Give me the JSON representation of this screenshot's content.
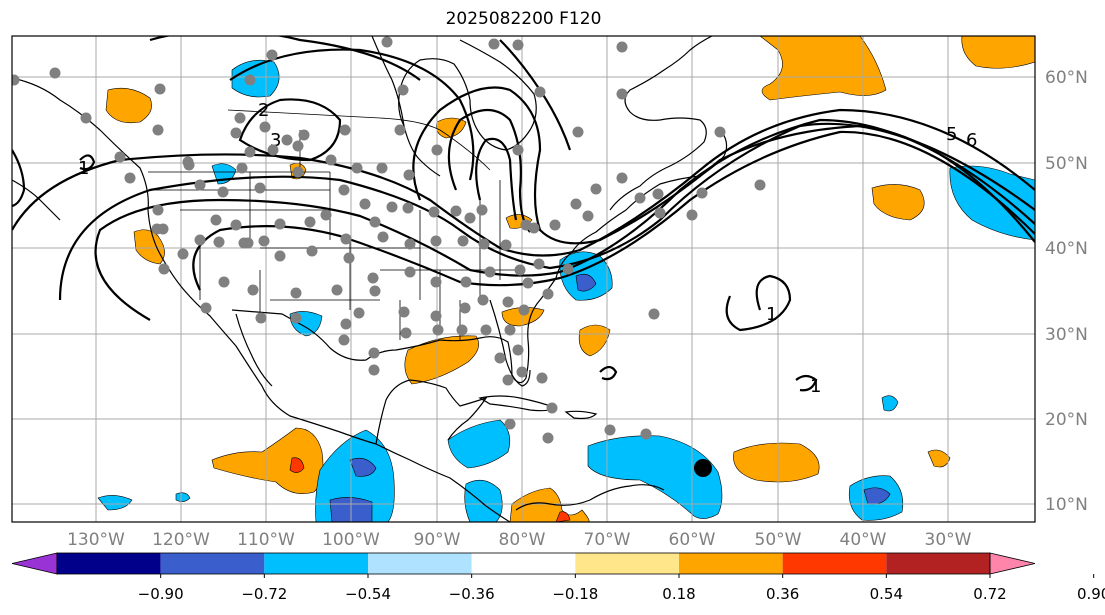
{
  "title": "2025082200 F120",
  "lon_labels": [
    "130°W",
    "120°W",
    "110°W",
    "100°W",
    "90°W",
    "80°W",
    "70°W",
    "60°W",
    "50°W",
    "40°W",
    "30°W"
  ],
  "lat_labels": [
    "60°N",
    "50°N",
    "40°N",
    "30°N",
    "20°N",
    "10°N"
  ],
  "contour_labels": [
    "2",
    "3",
    "6",
    "5",
    "1",
    "1",
    "1"
  ],
  "colorbar": {
    "ticks": [
      "−0.90",
      "−0.72",
      "−0.54",
      "−0.36",
      "−0.18",
      "0.18",
      "0.36",
      "0.54",
      "0.72",
      "0.90"
    ],
    "colors": [
      "#9a33d6",
      "#00008b",
      "#3a5fcd",
      "#00bfff",
      "#afe2ff",
      "#ffffff",
      "#ffe68a",
      "#ffa500",
      "#ff3800",
      "#b22222",
      "#ff85aa"
    ]
  },
  "colors": {
    "grid": "#a9a9a9",
    "contour": "#000000",
    "station": "#808080",
    "axis_label": "#808080"
  }
}
